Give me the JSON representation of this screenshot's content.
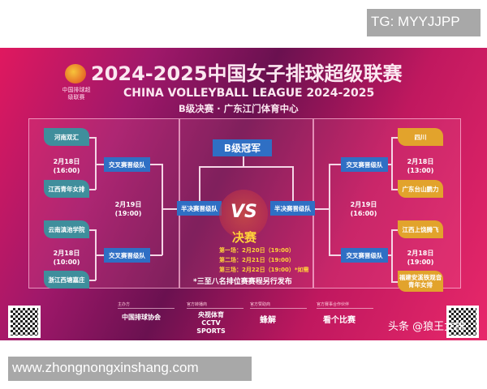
{
  "watermark_top": "TG: MYYJJPP",
  "watermark_bottom": "www.zhongnongxinshang.com",
  "poster": {
    "logo_text": "中国排球超级联赛",
    "title_cn": "2024-2025中国女子排球超级联赛",
    "title_en": "CHINA VOLLEYBALL LEAGUE 2024-2025",
    "subtitle": "B级决赛 · 广东江门体育中心",
    "left": {
      "teams": [
        "河南双汇",
        "江西青年女排",
        "云南滇池学院",
        "浙江西塘嘉庄"
      ],
      "dates": [
        "2月18日\n(16:00)",
        "2月18日\n(10:00)"
      ],
      "semi_date": "2月19日\n(19:00)",
      "quarter_label": "交叉赛晋级队",
      "semi_label": "半决赛晋级队"
    },
    "right": {
      "teams": [
        "四川",
        "广东台山鹏力",
        "江西上饶腾飞",
        "福建安溪铁观音青年女排"
      ],
      "dates": [
        "2月18日\n(13:00)",
        "2月18日\n(19:00)"
      ],
      "semi_date": "2月19日\n(16:00)",
      "quarter_label": "交叉赛晋级队",
      "semi_label": "半决赛晋级队"
    },
    "champion": "B级冠军",
    "vs": "VS",
    "final_title": "决赛",
    "final_games": [
      "第一场：2月20日（19:00）",
      "第二场：2月21日（19:00）",
      "第三场：2月22日（19:00）*如需"
    ],
    "note": "*三至八名排位赛赛程另行发布",
    "sponsors": [
      {
        "role": "主办方",
        "name": "中国排球协会"
      },
      {
        "role": "官方转播商",
        "name": "央视体育 CCTV SPORTS"
      },
      {
        "role": "官方赞助商",
        "name": "蜂解"
      },
      {
        "role": "官方赛事合作伙伴",
        "name": "看个比赛"
      }
    ],
    "credit": "头条 @狼王女排",
    "colors": {
      "team_left": "#3f8e9c",
      "team_right": "#e2a32c",
      "box": "#2f6fc4",
      "final": "#ffd23a"
    }
  }
}
